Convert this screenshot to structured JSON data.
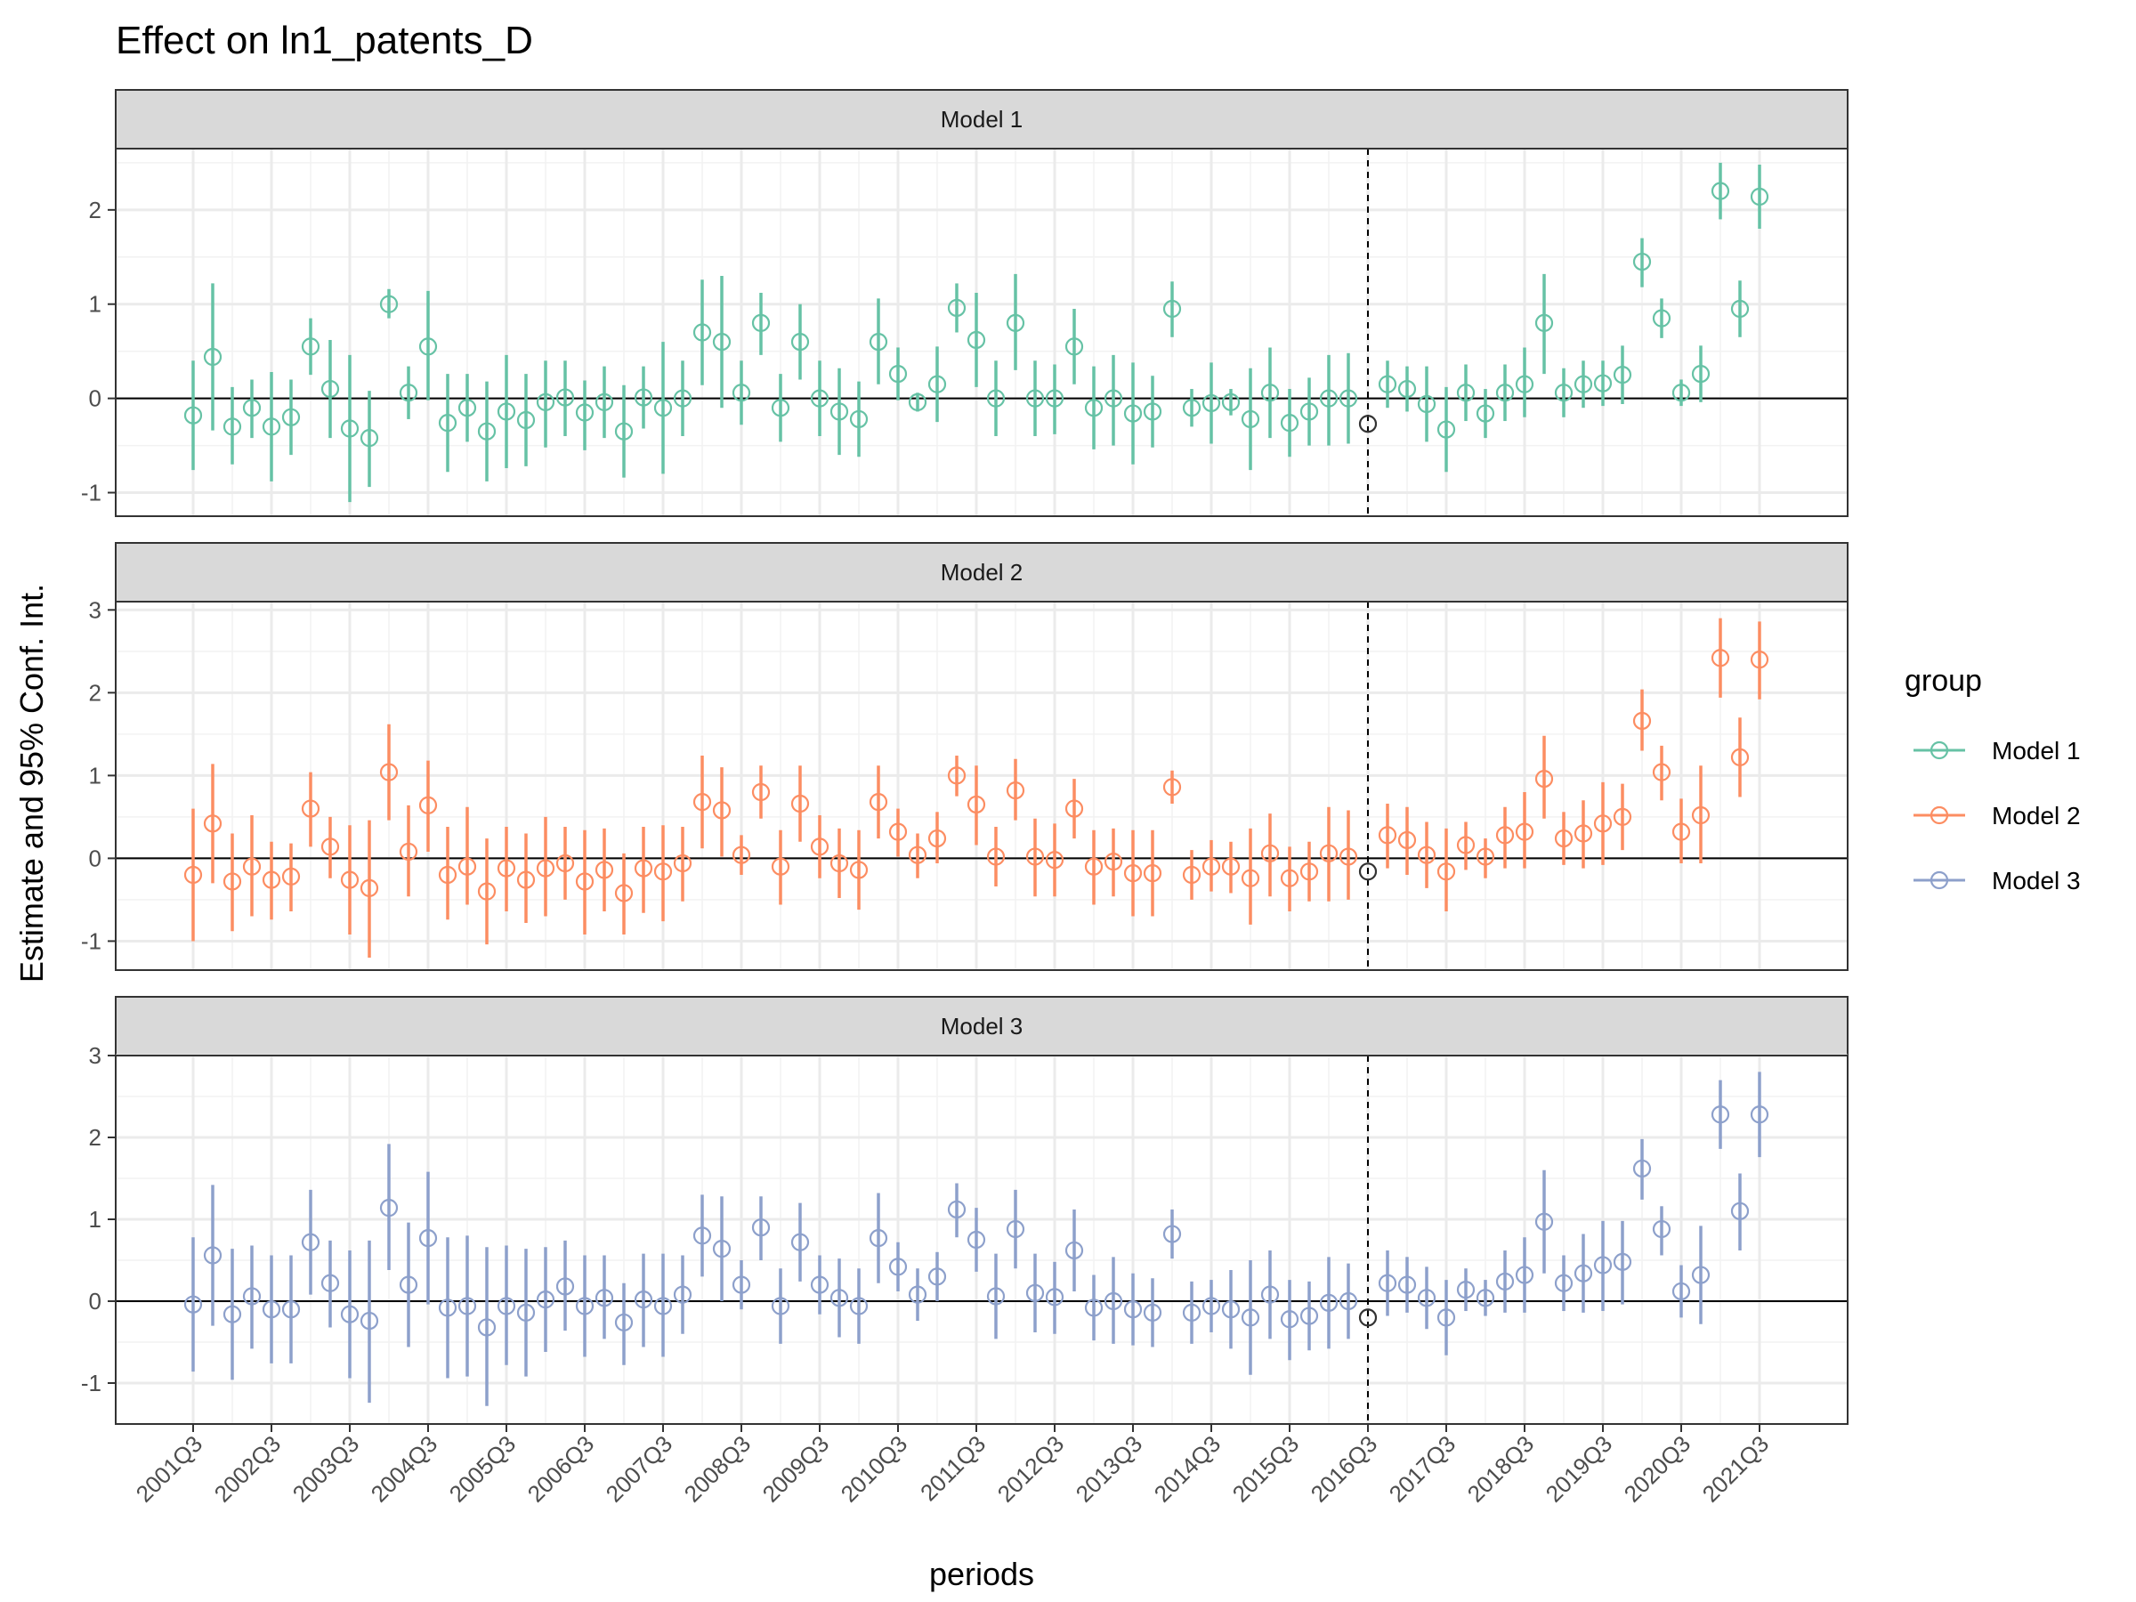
{
  "chart_data": {
    "type": "scatter",
    "title": "Effect on ln1_patents_D",
    "xlabel": "periods",
    "ylabel": "Estimate and 95% Conf. Int.",
    "legend_title": "group",
    "legend_position": "right",
    "grid": true,
    "reference_period": "2016Q1",
    "x_tick_labels": [
      "2001Q3",
      "2002Q3",
      "2003Q3",
      "2004Q3",
      "2005Q3",
      "2006Q3",
      "2007Q3",
      "2008Q3",
      "2009Q3",
      "2010Q3",
      "2011Q3",
      "2012Q3",
      "2013Q3",
      "2014Q3",
      "2015Q3",
      "2016Q3",
      "2017Q3",
      "2018Q3",
      "2019Q3",
      "2020Q3",
      "2021Q3"
    ],
    "panels": [
      {
        "label": "Model 1",
        "color": "#66C2A5",
        "ylim": [
          -1.25,
          2.65
        ],
        "y_ticks": [
          -1,
          0,
          1,
          2
        ],
        "estimate": [
          -0.18,
          0.44,
          -0.3,
          -0.1,
          -0.3,
          -0.2,
          0.55,
          0.1,
          -0.32,
          -0.42,
          1.0,
          0.06,
          0.55,
          -0.26,
          -0.1,
          -0.35,
          -0.14,
          -0.23,
          -0.04,
          0.01,
          -0.15,
          -0.04,
          -0.35,
          0.01,
          -0.1,
          0.0,
          0.7,
          0.6,
          0.06,
          0.8,
          -0.1,
          0.6,
          0.0,
          -0.14,
          -0.22,
          0.6,
          0.26,
          -0.04,
          0.15,
          0.96,
          0.62,
          0.0,
          0.8,
          0.0,
          0.0,
          0.55,
          -0.1,
          0.0,
          -0.16,
          -0.14,
          0.95,
          -0.1,
          -0.05,
          -0.04,
          -0.22,
          0.06,
          -0.26,
          -0.14,
          0.0,
          0.0,
          -0.27,
          0.15,
          0.1,
          -0.06,
          -0.33,
          0.06,
          -0.16,
          0.06,
          0.15,
          0.8,
          0.06,
          0.15,
          0.16,
          0.25,
          1.45,
          0.85,
          0.06,
          0.26,
          2.2,
          0.95,
          2.14
        ],
        "ci_low": [
          -0.76,
          -0.34,
          -0.7,
          -0.42,
          -0.88,
          -0.6,
          0.25,
          -0.42,
          -1.1,
          -0.94,
          0.85,
          -0.22,
          -0.02,
          -0.78,
          -0.46,
          -0.88,
          -0.74,
          -0.72,
          -0.52,
          -0.4,
          -0.55,
          -0.42,
          -0.84,
          -0.32,
          -0.8,
          -0.4,
          0.14,
          -0.1,
          -0.28,
          0.46,
          -0.46,
          0.2,
          -0.4,
          -0.6,
          -0.62,
          0.15,
          -0.02,
          -0.14,
          -0.25,
          0.7,
          0.12,
          -0.4,
          0.3,
          -0.4,
          -0.38,
          0.15,
          -0.54,
          -0.5,
          -0.7,
          -0.52,
          0.65,
          -0.3,
          -0.48,
          -0.18,
          -0.76,
          -0.42,
          -0.62,
          -0.5,
          -0.5,
          -0.48,
          -0.78,
          -0.1,
          -0.14,
          -0.46,
          -0.78,
          -0.24,
          -0.42,
          -0.24,
          -0.2,
          0.26,
          -0.2,
          -0.1,
          -0.08,
          -0.06,
          1.18,
          0.64,
          -0.08,
          -0.04,
          1.9,
          0.65,
          1.8
        ],
        "ci_high": [
          0.4,
          1.22,
          0.12,
          0.2,
          0.28,
          0.2,
          0.85,
          0.62,
          0.46,
          0.08,
          1.16,
          0.34,
          1.14,
          0.26,
          0.26,
          0.18,
          0.46,
          0.26,
          0.4,
          0.4,
          0.19,
          0.34,
          0.14,
          0.34,
          0.6,
          0.4,
          1.26,
          1.3,
          0.4,
          1.12,
          0.26,
          1.0,
          0.4,
          0.32,
          0.18,
          1.06,
          0.54,
          0.06,
          0.55,
          1.22,
          1.12,
          0.4,
          1.32,
          0.4,
          0.36,
          0.95,
          0.34,
          0.46,
          0.38,
          0.24,
          1.24,
          0.1,
          0.38,
          0.1,
          0.32,
          0.54,
          0.1,
          0.22,
          0.46,
          0.48,
          0.24,
          0.4,
          0.34,
          0.34,
          0.12,
          0.36,
          0.1,
          0.36,
          0.54,
          1.32,
          0.32,
          0.4,
          0.4,
          0.56,
          1.7,
          1.06,
          0.2,
          0.56,
          2.5,
          1.25,
          2.48
        ]
      },
      {
        "label": "Model 2",
        "color": "#FC8D62",
        "ylim": [
          -1.35,
          3.1
        ],
        "y_ticks": [
          -1,
          0,
          1,
          2,
          3
        ],
        "estimate": [
          -0.2,
          0.42,
          -0.28,
          -0.1,
          -0.26,
          -0.22,
          0.6,
          0.14,
          -0.26,
          -0.36,
          1.04,
          0.08,
          0.64,
          -0.2,
          -0.1,
          -0.4,
          -0.12,
          -0.26,
          -0.12,
          -0.06,
          -0.28,
          -0.14,
          -0.42,
          -0.12,
          -0.16,
          -0.06,
          0.68,
          0.58,
          0.04,
          0.8,
          -0.1,
          0.66,
          0.14,
          -0.06,
          -0.14,
          0.68,
          0.32,
          0.04,
          0.24,
          1.0,
          0.65,
          0.02,
          0.82,
          0.02,
          -0.02,
          0.6,
          -0.1,
          -0.04,
          -0.18,
          -0.18,
          0.86,
          -0.2,
          -0.1,
          -0.1,
          -0.24,
          0.06,
          -0.24,
          -0.16,
          0.06,
          0.02,
          -0.16,
          0.28,
          0.22,
          0.04,
          -0.16,
          0.16,
          0.02,
          0.28,
          0.32,
          0.96,
          0.24,
          0.3,
          0.42,
          0.5,
          1.66,
          1.04,
          0.32,
          0.52,
          2.42,
          1.22,
          2.4
        ],
        "ci_low": [
          -1.0,
          -0.3,
          -0.88,
          -0.7,
          -0.74,
          -0.64,
          0.14,
          -0.24,
          -0.92,
          -1.2,
          0.46,
          -0.46,
          0.08,
          -0.74,
          -0.56,
          -1.04,
          -0.64,
          -0.78,
          -0.7,
          -0.5,
          -0.92,
          -0.64,
          -0.92,
          -0.66,
          -0.76,
          -0.52,
          0.12,
          0.02,
          -0.2,
          0.48,
          -0.56,
          0.2,
          -0.24,
          -0.48,
          -0.62,
          0.24,
          0.02,
          -0.24,
          -0.06,
          0.75,
          0.16,
          -0.34,
          0.46,
          -0.46,
          -0.46,
          0.24,
          -0.56,
          -0.46,
          -0.7,
          -0.7,
          0.66,
          -0.5,
          -0.4,
          -0.42,
          -0.8,
          -0.46,
          -0.64,
          -0.52,
          -0.52,
          -0.5,
          -0.66,
          -0.12,
          -0.2,
          -0.36,
          -0.64,
          -0.14,
          -0.24,
          -0.12,
          -0.12,
          0.48,
          -0.08,
          -0.12,
          -0.08,
          0.1,
          1.3,
          0.7,
          -0.06,
          -0.06,
          1.94,
          0.74,
          1.92
        ],
        "ci_high": [
          0.6,
          1.14,
          0.3,
          0.52,
          0.2,
          0.18,
          1.04,
          0.5,
          0.4,
          0.46,
          1.62,
          0.64,
          1.18,
          0.38,
          0.62,
          0.24,
          0.38,
          0.3,
          0.5,
          0.38,
          0.34,
          0.36,
          0.06,
          0.38,
          0.4,
          0.38,
          1.24,
          1.1,
          0.28,
          1.12,
          0.34,
          1.12,
          0.52,
          0.36,
          0.34,
          1.12,
          0.6,
          0.3,
          0.56,
          1.24,
          1.12,
          0.38,
          1.2,
          0.48,
          0.42,
          0.96,
          0.34,
          0.36,
          0.34,
          0.34,
          1.06,
          0.1,
          0.22,
          0.2,
          0.36,
          0.54,
          0.14,
          0.2,
          0.62,
          0.58,
          0.34,
          0.66,
          0.62,
          0.44,
          0.36,
          0.44,
          0.24,
          0.62,
          0.8,
          1.48,
          0.56,
          0.7,
          0.92,
          0.9,
          2.04,
          1.36,
          0.72,
          1.12,
          2.9,
          1.7,
          2.86
        ]
      },
      {
        "label": "Model 3",
        "color": "#8DA0CB",
        "ylim": [
          -1.5,
          3.0
        ],
        "y_ticks": [
          -1,
          0,
          1,
          2,
          3
        ],
        "estimate": [
          -0.04,
          0.56,
          -0.16,
          0.06,
          -0.1,
          -0.1,
          0.72,
          0.22,
          -0.16,
          -0.24,
          1.14,
          0.2,
          0.77,
          -0.08,
          -0.06,
          -0.32,
          -0.06,
          -0.14,
          0.02,
          0.18,
          -0.06,
          0.04,
          -0.26,
          0.02,
          -0.06,
          0.08,
          0.8,
          0.64,
          0.2,
          0.9,
          -0.06,
          0.72,
          0.2,
          0.04,
          -0.06,
          0.77,
          0.42,
          0.08,
          0.3,
          1.12,
          0.75,
          0.06,
          0.88,
          0.1,
          0.05,
          0.62,
          -0.08,
          0.0,
          -0.1,
          -0.14,
          0.82,
          -0.14,
          -0.06,
          -0.1,
          -0.2,
          0.08,
          -0.22,
          -0.18,
          -0.02,
          0.0,
          -0.2,
          0.22,
          0.2,
          0.04,
          -0.2,
          0.14,
          0.04,
          0.24,
          0.32,
          0.97,
          0.22,
          0.34,
          0.44,
          0.48,
          1.62,
          0.88,
          0.12,
          0.32,
          2.28,
          1.1,
          2.28
        ],
        "ci_low": [
          -0.86,
          -0.3,
          -0.96,
          -0.58,
          -0.76,
          -0.76,
          0.08,
          -0.32,
          -0.94,
          -1.24,
          0.38,
          -0.56,
          -0.04,
          -0.94,
          -0.92,
          -1.28,
          -0.78,
          -0.92,
          -0.62,
          -0.36,
          -0.68,
          -0.46,
          -0.78,
          -0.56,
          -0.68,
          -0.4,
          0.3,
          0.0,
          -0.1,
          0.5,
          -0.52,
          0.24,
          -0.16,
          -0.44,
          -0.52,
          0.22,
          0.12,
          -0.24,
          0.0,
          0.78,
          0.36,
          -0.46,
          0.4,
          -0.38,
          -0.4,
          0.12,
          -0.48,
          -0.52,
          -0.54,
          -0.56,
          0.52,
          -0.52,
          -0.38,
          -0.58,
          -0.9,
          -0.46,
          -0.72,
          -0.6,
          -0.58,
          -0.46,
          -0.68,
          -0.18,
          -0.14,
          -0.34,
          -0.66,
          -0.12,
          -0.18,
          -0.14,
          -0.14,
          0.34,
          -0.12,
          -0.14,
          -0.12,
          -0.04,
          1.24,
          0.56,
          -0.2,
          -0.28,
          1.86,
          0.62,
          1.76
        ],
        "ci_high": [
          0.78,
          1.42,
          0.64,
          0.68,
          0.56,
          0.56,
          1.36,
          0.74,
          0.62,
          0.74,
          1.92,
          0.96,
          1.58,
          0.78,
          0.8,
          0.66,
          0.68,
          0.64,
          0.66,
          0.74,
          0.56,
          0.56,
          0.22,
          0.58,
          0.58,
          0.56,
          1.3,
          1.28,
          0.5,
          1.28,
          0.4,
          1.2,
          0.56,
          0.52,
          0.4,
          1.32,
          0.72,
          0.4,
          0.6,
          1.44,
          1.14,
          0.58,
          1.36,
          0.58,
          0.48,
          1.12,
          0.32,
          0.54,
          0.34,
          0.28,
          1.12,
          0.24,
          0.26,
          0.38,
          0.5,
          0.62,
          0.26,
          0.24,
          0.54,
          0.46,
          0.28,
          0.62,
          0.54,
          0.42,
          0.26,
          0.4,
          0.26,
          0.62,
          0.78,
          1.6,
          0.56,
          0.82,
          0.98,
          0.98,
          1.98,
          1.16,
          0.44,
          0.92,
          2.7,
          1.56,
          2.8
        ]
      }
    ]
  }
}
